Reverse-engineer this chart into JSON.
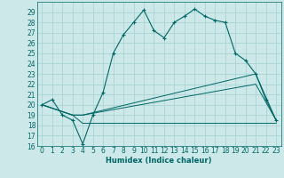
{
  "xlabel": "Humidex (Indice chaleur)",
  "bg_color": "#cce8e8",
  "grid_color": "#aad4d4",
  "line_color": "#006666",
  "ylim": [
    16,
    30
  ],
  "xlim": [
    -0.5,
    23.5
  ],
  "yticks": [
    16,
    17,
    18,
    19,
    20,
    21,
    22,
    23,
    24,
    25,
    26,
    27,
    28,
    29
  ],
  "xticks": [
    0,
    1,
    2,
    3,
    4,
    5,
    6,
    7,
    8,
    9,
    10,
    11,
    12,
    13,
    14,
    15,
    16,
    17,
    18,
    19,
    20,
    21,
    22,
    23
  ],
  "main_line_x": [
    0,
    1,
    2,
    3,
    4,
    5,
    6,
    7,
    8,
    9,
    10,
    11,
    12,
    13,
    14,
    15,
    16,
    17,
    18,
    19,
    20,
    21,
    22,
    23
  ],
  "main_line_y": [
    20,
    20.5,
    19,
    18.5,
    16.2,
    19,
    21.2,
    25,
    26.8,
    28,
    29.2,
    27.2,
    26.5,
    28,
    28.6,
    29.3,
    28.6,
    28.2,
    28,
    25,
    24.3,
    23,
    20.5,
    18.5
  ],
  "line_flat_x": [
    0,
    3,
    4,
    10,
    23
  ],
  "line_flat_y": [
    20,
    19,
    18.2,
    18.2,
    18.2
  ],
  "line_diag1_x": [
    0,
    3,
    4,
    21,
    23
  ],
  "line_diag1_y": [
    20,
    19,
    19,
    23,
    18.5
  ],
  "line_diag2_x": [
    0,
    3,
    4,
    21,
    23
  ],
  "line_diag2_y": [
    20,
    19,
    19,
    22,
    18.5
  ]
}
